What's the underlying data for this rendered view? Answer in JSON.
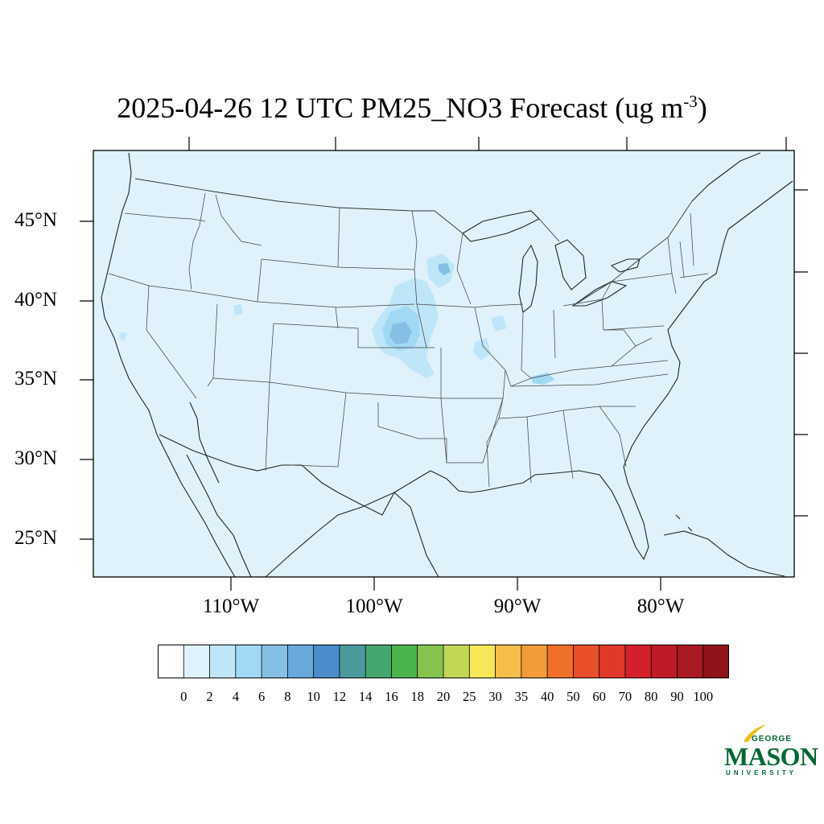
{
  "title": {
    "main": "2025-04-26 12 UTC PM25_NO3 Forecast (ug m",
    "superscript": "-3",
    "close": ")"
  },
  "map": {
    "background_color": "#dff2fb",
    "latitude_labels": [
      "45°N",
      "40°N",
      "35°N",
      "30°N",
      "25°N"
    ],
    "longitude_labels": [
      "110°W",
      "100°W",
      "90°W",
      "80°W"
    ]
  },
  "colorbar": {
    "labels": [
      "0",
      "2",
      "4",
      "6",
      "8",
      "10",
      "12",
      "14",
      "16",
      "18",
      "20",
      "25",
      "30",
      "35",
      "40",
      "50",
      "60",
      "70",
      "80",
      "90",
      "100"
    ],
    "colors": [
      "#ffffff",
      "#dff2fb",
      "#bfe6f8",
      "#a1d8f4",
      "#85bfe6",
      "#69a8db",
      "#4b8ccb",
      "#4a9a9c",
      "#45a56e",
      "#4ab34a",
      "#85c34e",
      "#c3d756",
      "#f9e658",
      "#f6bf4b",
      "#f39a3a",
      "#ef6f2b",
      "#e94f2b",
      "#e03829",
      "#d3202a",
      "#be1b27",
      "#a91a22",
      "#8f1419"
    ]
  },
  "logo": {
    "line1": "GEORGE",
    "line2": "MASON",
    "line3": "UNIVERSITY",
    "color": "#006633",
    "accent": "#e8c21b"
  },
  "concentration_areas": [
    {
      "region": "Nebraska-Kansas",
      "level_ug_m3": "4-8"
    },
    {
      "region": "Southern Minnesota",
      "level_ug_m3": "2-6"
    },
    {
      "region": "Kentucky",
      "level_ug_m3": "2-4"
    }
  ]
}
